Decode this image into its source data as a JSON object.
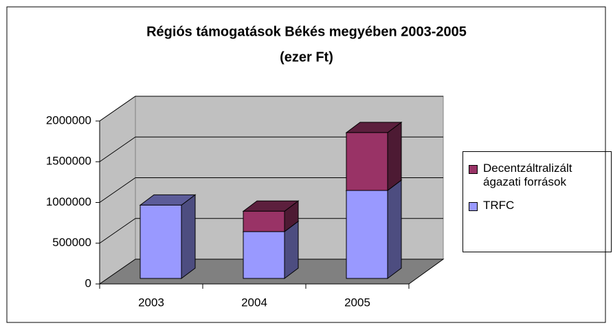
{
  "chart_data": {
    "type": "bar3d_stacked",
    "title": [
      "Régiós támogatások Békés megyében 2003-2005",
      "(ezer Ft)"
    ],
    "categories": [
      "2003",
      "2004",
      "2005"
    ],
    "series": [
      {
        "name": "TRFC",
        "color": "#9999ff",
        "values": [
          900000,
          575000,
          1080000
        ]
      },
      {
        "name": "Decentzáltralizált ágazati források",
        "color": "#993366",
        "values": [
          0,
          250000,
          710000
        ]
      }
    ],
    "ylim": [
      0,
      2000000
    ],
    "yticks": [
      0,
      500000,
      1000000,
      1500000,
      2000000
    ],
    "grid": true,
    "legend": "right"
  }
}
